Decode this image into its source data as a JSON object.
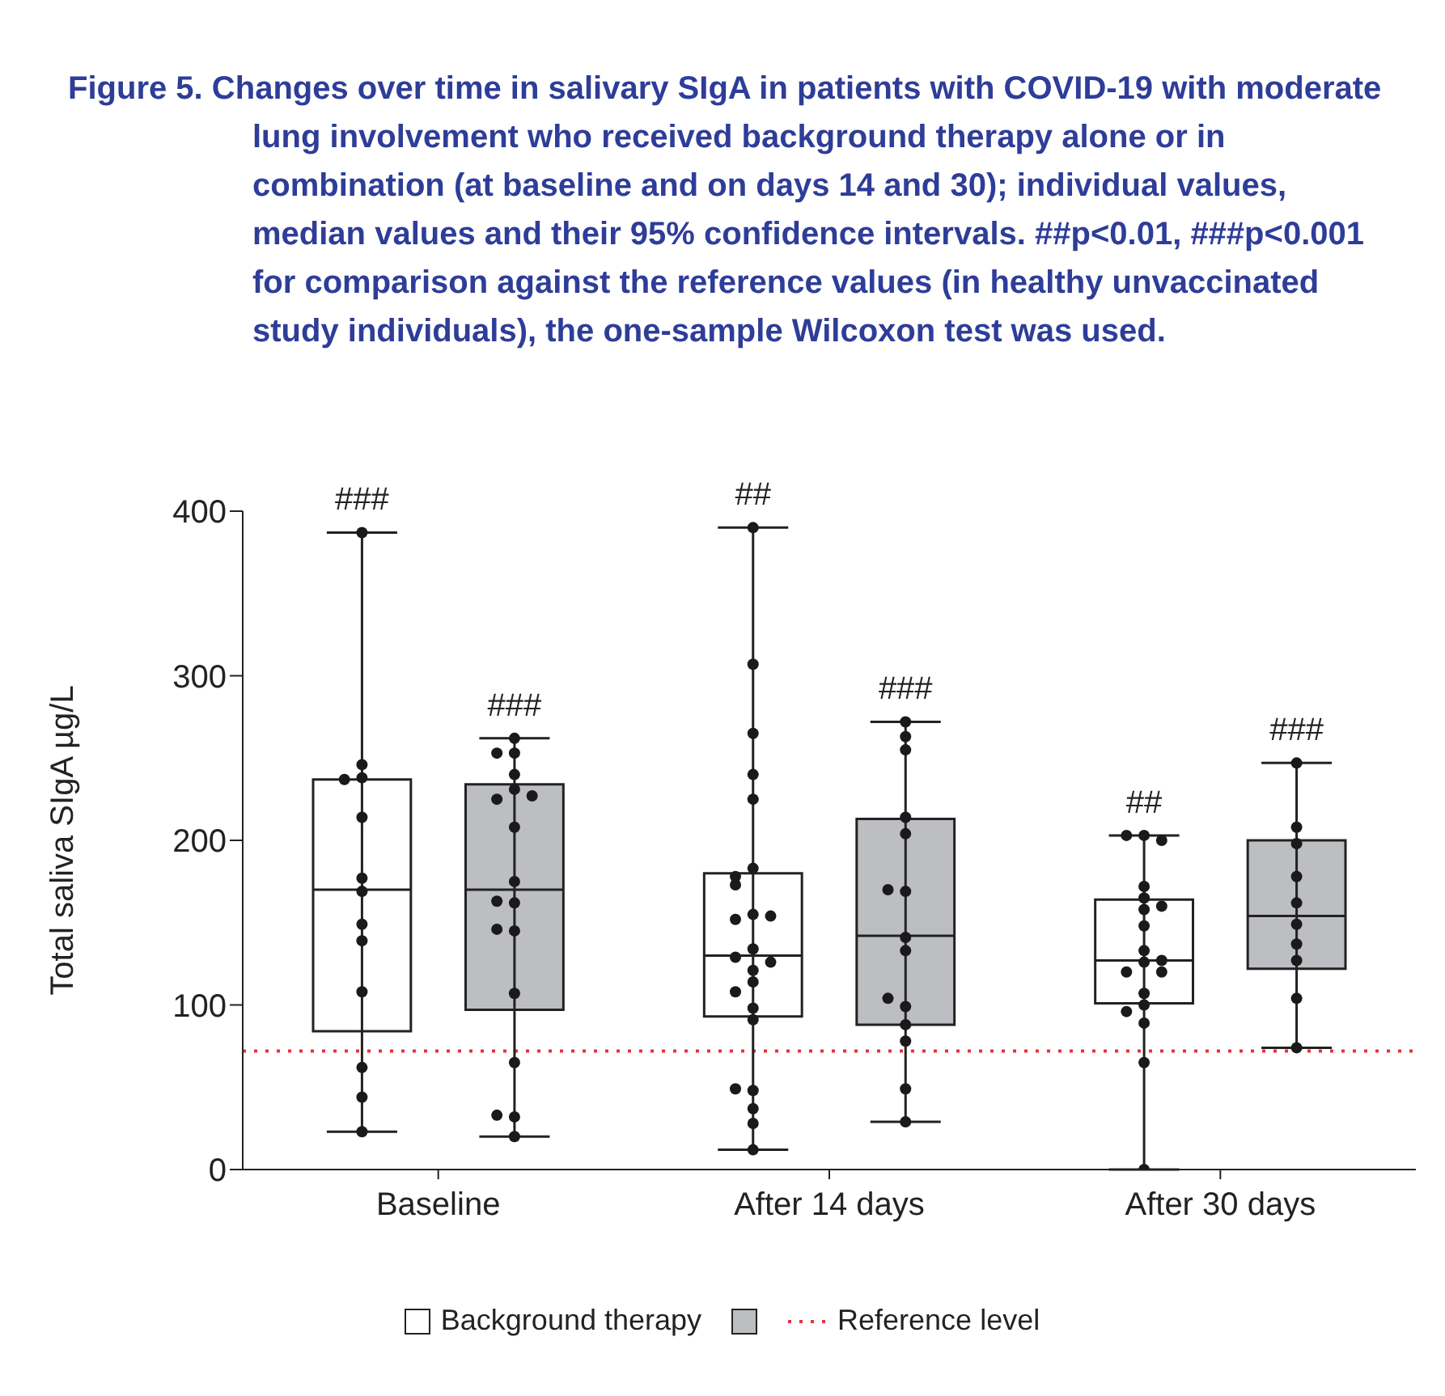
{
  "chart_data": {
    "type": "box",
    "title": "Figure 5.   Changes over time in salivary SIgA in patients with COVID-19 with moderate lung involvement who received background therapy alone or in combination (at baseline and on days 14 and 30); individual values, median values and their 95% confidence intervals. ##p<0.01, ###p<0.001 for comparison against the reference values (in healthy unvaccinated study individuals), the one-sample Wilcoxon test was used.",
    "ylabel": "Total saliva SIgA µg/L",
    "categories": [
      "Baseline",
      "After 14 days",
      "After 30 days"
    ],
    "ylim": [
      0,
      400
    ],
    "yticks": [
      0,
      100,
      200,
      300,
      400
    ],
    "grid": false,
    "legend": "bottom",
    "series": [
      {
        "name": "Background therapy",
        "color": "#ffffff",
        "boxes": [
          {
            "low": 23,
            "q1": 84,
            "median": 170,
            "q3": 237,
            "high": 387
          },
          {
            "low": 12,
            "q1": 93,
            "median": 130,
            "q3": 180,
            "high": 390
          },
          {
            "low": 0,
            "q1": 101,
            "median": 127,
            "q3": 164,
            "high": 203
          }
        ]
      },
      {
        "color": "#bdbec2",
        "boxes": [
          {
            "low": 20,
            "q1": 97,
            "median": 170,
            "q3": 234,
            "high": 262
          },
          {
            "low": 29,
            "q1": 88,
            "median": 142,
            "q3": 213,
            "high": 272
          },
          {
            "low": 74,
            "q1": 122,
            "median": 154,
            "q3": 200,
            "high": 247
          }
        ]
      },
      {
        "type": "scatter",
        "color": "#1a1a1a",
        "x": [
          "Baseline",
          "Baseline",
          "Baseline",
          "Baseline",
          "Baseline",
          "Baseline",
          "Baseline",
          "Baseline",
          "Baseline",
          "Baseline",
          "Baseline",
          "Baseline",
          "Baseline",
          "After 14 days",
          "After 14 days",
          "After 14 days",
          "After 14 days",
          "After 14 days",
          "After 14 days",
          "After 14 days",
          "After 14 days",
          "After 14 days",
          "After 14 days",
          "After 14 days",
          "After 14 days",
          "After 14 days",
          "After 14 days",
          "After 14 days",
          "After 14 days",
          "After 14 days",
          "After 14 days",
          "After 14 days",
          "After 14 days",
          "After 14 days",
          "After 14 days",
          "After 14 days",
          "After 14 days",
          "After 30 days",
          "After 30 days",
          "After 30 days",
          "After 30 days",
          "After 30 days",
          "After 30 days",
          "After 30 days",
          "After 30 days",
          "After 30 days",
          "After 30 days",
          "After 30 days",
          "After 30 days",
          "After 30 days",
          "After 30 days",
          "After 30 days",
          "After 30 days",
          "After 30 days",
          "After 30 days",
          "After 30 days"
        ],
        "values": [
          387,
          246,
          238,
          237,
          214,
          177,
          169,
          149,
          139,
          108,
          62,
          44,
          23,
          390,
          307,
          265,
          240,
          225,
          183,
          178,
          173,
          155,
          152,
          154,
          134,
          129,
          121,
          126,
          114,
          108,
          98,
          91,
          48,
          49,
          37,
          28,
          12,
          203,
          203,
          200,
          172,
          165,
          158,
          160,
          148,
          133,
          126,
          127,
          120,
          120,
          107,
          100,
          96,
          89,
          65,
          0
        ]
      },
      {
        "type": "scatter",
        "color": "#1a1a1a",
        "x": [
          "Baseline",
          "Baseline",
          "Baseline",
          "Baseline",
          "Baseline",
          "Baseline",
          "Baseline",
          "Baseline",
          "Baseline",
          "Baseline",
          "Baseline",
          "Baseline",
          "Baseline",
          "Baseline",
          "Baseline",
          "Baseline",
          "Baseline",
          "Baseline",
          "After 14 days",
          "After 14 days",
          "After 14 days",
          "After 14 days",
          "After 14 days",
          "After 14 days",
          "After 14 days",
          "After 14 days",
          "After 14 days",
          "After 14 days",
          "After 14 days",
          "After 14 days",
          "After 14 days",
          "After 14 days",
          "After 14 days",
          "After 30 days",
          "After 30 days",
          "After 30 days",
          "After 30 days",
          "After 30 days",
          "After 30 days",
          "After 30 days",
          "After 30 days",
          "After 30 days",
          "After 30 days"
        ],
        "values": [
          262,
          253,
          253,
          240,
          231,
          225,
          227,
          208,
          175,
          162,
          163,
          145,
          146,
          107,
          65,
          32,
          33,
          20,
          272,
          263,
          255,
          214,
          204,
          169,
          170,
          141,
          133,
          99,
          104,
          88,
          78,
          49,
          29,
          247,
          208,
          198,
          178,
          162,
          149,
          137,
          127,
          104,
          74
        ]
      }
    ],
    "ref_lines": [
      {
        "axis": "y",
        "value": 72,
        "label": "Reference level",
        "color": "#e8323c",
        "line_style": "dotted"
      }
    ],
    "annotations": [
      "###",
      "###",
      "##",
      "###",
      "##",
      "###"
    ]
  }
}
